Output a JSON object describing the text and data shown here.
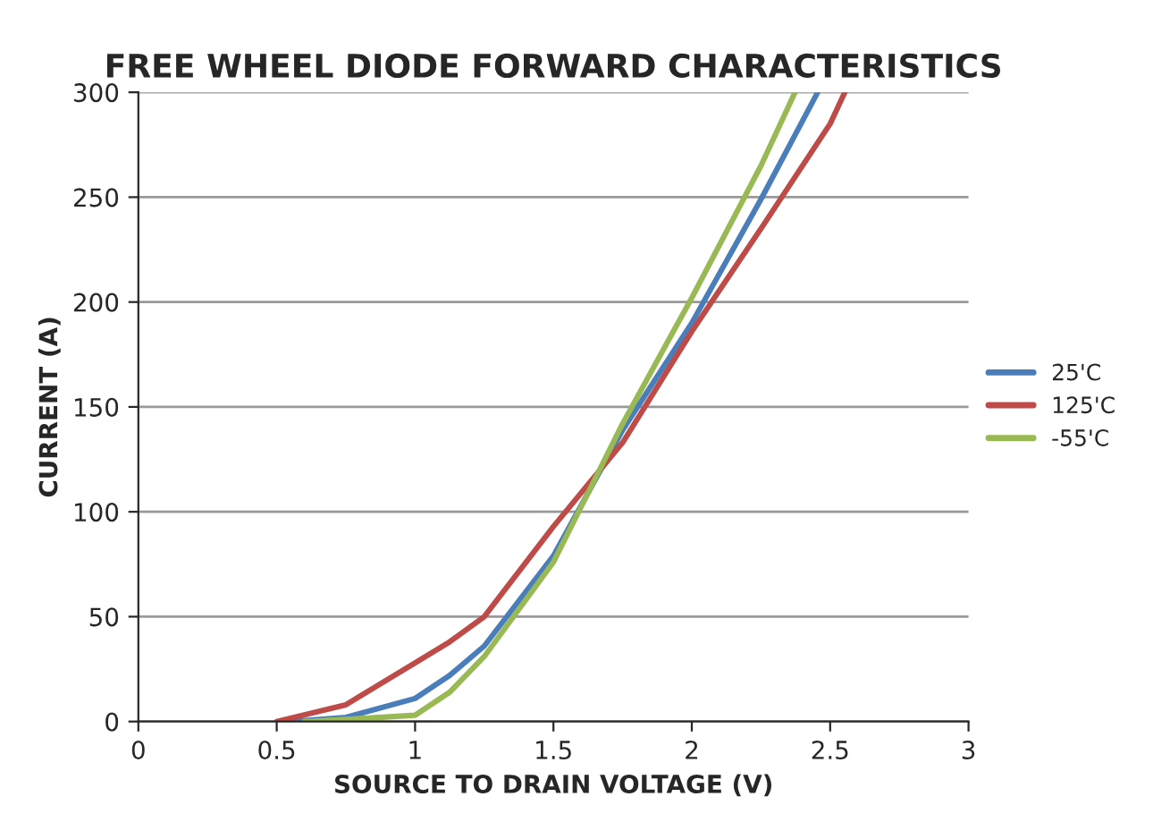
{
  "chart_data": {
    "type": "line",
    "title": "FREE WHEEL DIODE FORWARD CHARACTERISTICS",
    "xlabel": "SOURCE TO DRAIN VOLTAGE (V)",
    "ylabel": "CURRENT (A)",
    "series": [
      {
        "name": "25'C",
        "color": "#4a7ebb",
        "x": [
          0.55,
          0.75,
          1,
          1.125,
          1.25,
          1.5,
          1.75,
          2,
          2.25,
          2.455
        ],
        "values": [
          0,
          2,
          11,
          22,
          36,
          79,
          139,
          190,
          249,
          300
        ]
      },
      {
        "name": "125'C",
        "color": "#be4b48",
        "x": [
          0.5,
          0.75,
          1,
          1.125,
          1.25,
          1.5,
          1.75,
          2,
          2.25,
          2.5,
          2.553
        ],
        "values": [
          0,
          8,
          28,
          38,
          50,
          93,
          133,
          186,
          235,
          285,
          300
        ]
      },
      {
        "name": "-55'C",
        "color": "#98b954",
        "x": [
          0.6,
          0.75,
          1,
          1.125,
          1.25,
          1.5,
          1.75,
          2,
          2.25,
          2.373
        ],
        "values": [
          0,
          1,
          3,
          14,
          31,
          76,
          142,
          202,
          265,
          300
        ]
      }
    ],
    "xlim": [
      0,
      3
    ],
    "xticks": [
      0,
      0.5,
      1,
      1.5,
      2,
      2.5,
      3
    ],
    "ylim": [
      0,
      300
    ],
    "yticks": [
      0,
      50,
      100,
      150,
      200,
      250,
      300
    ],
    "grid": "y",
    "legend": "right",
    "marker": "none",
    "line_style": "solid"
  }
}
